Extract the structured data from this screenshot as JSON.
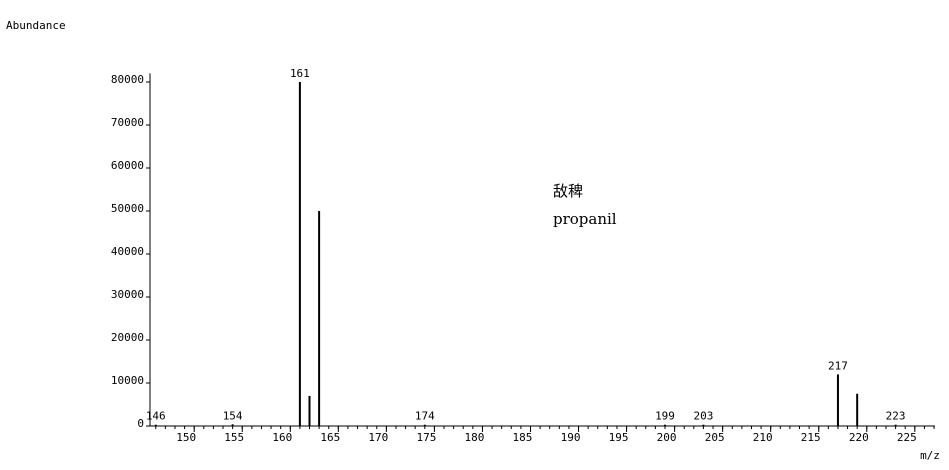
{
  "chart_data": {
    "type": "spectrum",
    "y_label": "Abundance",
    "x_label": "m/z",
    "annotations": [
      "敌稗",
      "propanil"
    ],
    "x": [
      146,
      154,
      161,
      162,
      163,
      174,
      199,
      203,
      217,
      219,
      223
    ],
    "values": [
      300,
      400,
      80000,
      7000,
      50000,
      300,
      300,
      300,
      12000,
      7500,
      300
    ],
    "labeled": [
      true,
      true,
      true,
      false,
      false,
      true,
      true,
      true,
      true,
      false,
      true
    ],
    "color": "#000000",
    "xlim": [
      145.4,
      227.1
    ],
    "xticks": [
      150,
      155,
      160,
      165,
      170,
      175,
      180,
      185,
      190,
      195,
      200,
      205,
      210,
      215,
      220,
      225
    ],
    "ylim": [
      0,
      82000
    ],
    "yticks": [
      0,
      10000,
      20000,
      30000,
      40000,
      50000,
      60000,
      70000,
      80000
    ]
  }
}
